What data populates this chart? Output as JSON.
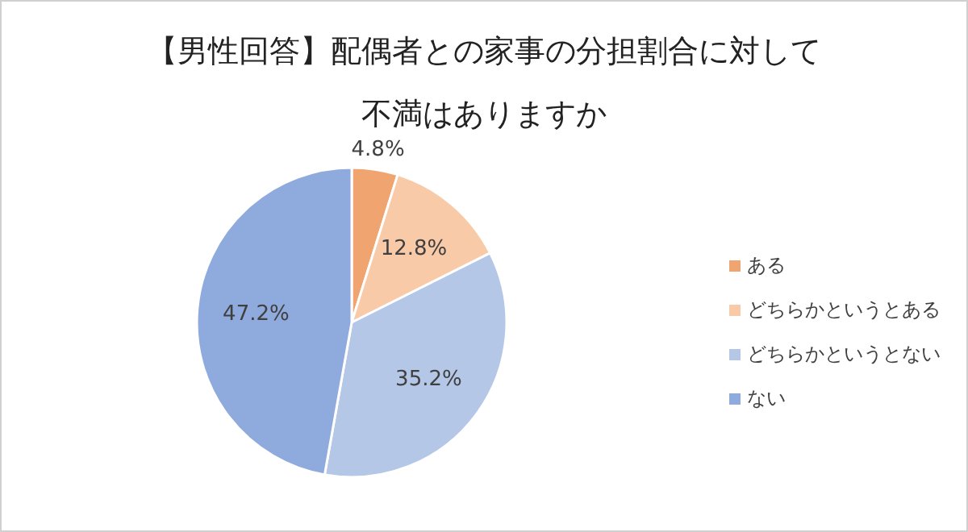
{
  "chart_data": {
    "type": "pie",
    "title": "【男性回答】配偶者との家事の分担割合に対して",
    "subtitle": "不満はありますか",
    "categories": [
      "ある",
      "どちらかというとある",
      "どちらかというとない",
      "ない"
    ],
    "values": [
      4.8,
      12.8,
      35.2,
      47.2
    ],
    "value_labels": [
      "4.8%",
      "12.8%",
      "35.2%",
      "47.2%"
    ],
    "colors": [
      "#f0a470",
      "#f8caa8",
      "#b4c7e7",
      "#8faadc"
    ],
    "legend": "right"
  }
}
